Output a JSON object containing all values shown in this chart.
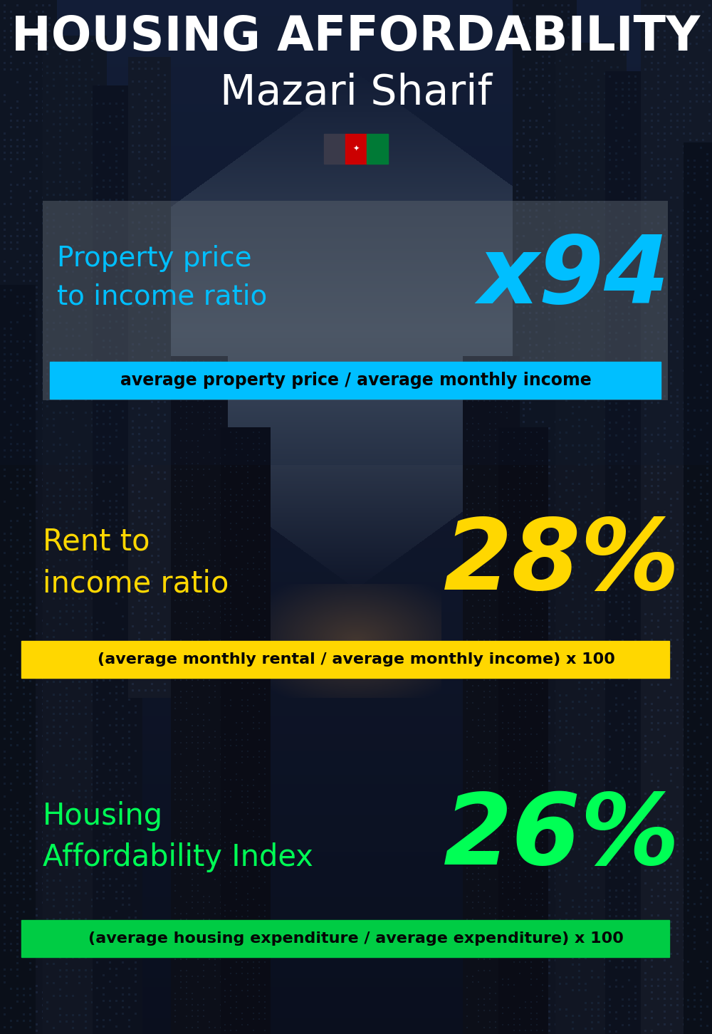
{
  "title_line1": "HOUSING AFFORDABILITY",
  "title_line2": "Mazari Sharif",
  "section1_label": "Property price\nto income ratio",
  "section1_value": "x94",
  "section1_sublabel": "average property price / average monthly income",
  "section1_label_color": "#00BFFF",
  "section1_value_color": "#00BFFF",
  "section1_bar_color": "#00BFFF",
  "section2_label": "Rent to\nincome ratio",
  "section2_value": "28%",
  "section2_sublabel": "(average monthly rental / average monthly income) x 100",
  "section2_label_color": "#FFD700",
  "section2_value_color": "#FFD700",
  "section2_bar_color": "#FFD700",
  "section3_label": "Housing\nAffordability Index",
  "section3_value": "26%",
  "section3_sublabel": "(average housing expenditure / average expenditure) x 100",
  "section3_label_color": "#00FF55",
  "section3_value_color": "#00FF55",
  "section3_bar_color": "#00CC44",
  "bg_color": "#060c14",
  "title_color": "#FFFFFF",
  "subtitle_color": "#FFFFFF",
  "sublabel_text_color": "#050505",
  "flag_dark": "#3a3a4a",
  "flag_red": "#CC0001",
  "flag_green": "#007A36"
}
